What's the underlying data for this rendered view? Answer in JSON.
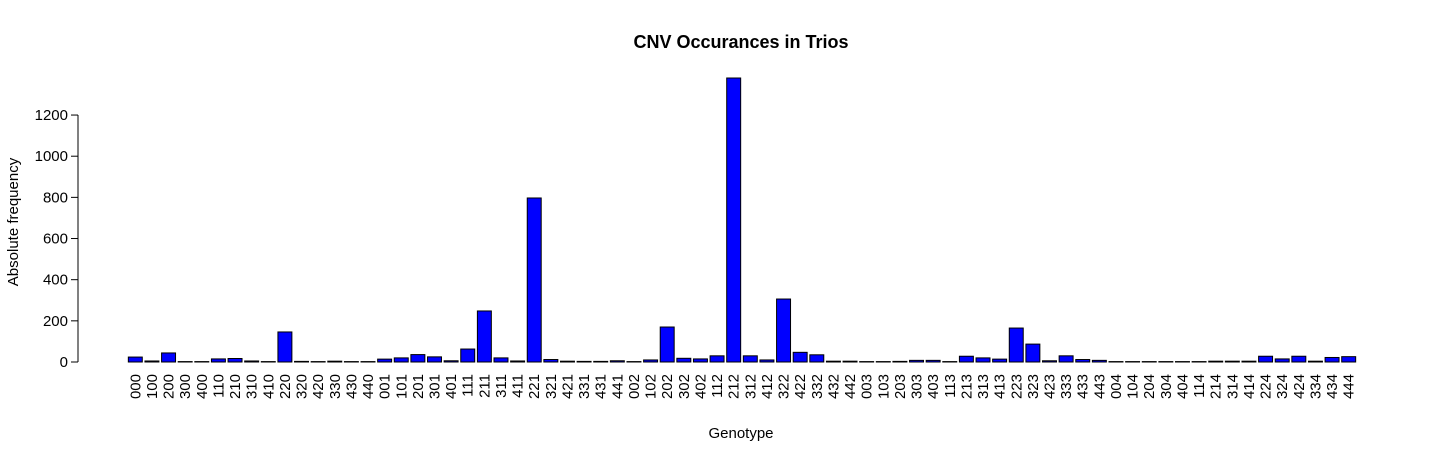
{
  "chart_data": {
    "type": "bar",
    "title": "CNV Occurances in Trios",
    "x_label": "Genotype",
    "y_label": "Absolute frequency",
    "categories": [
      "000",
      "100",
      "200",
      "300",
      "400",
      "110",
      "210",
      "310",
      "410",
      "220",
      "320",
      "420",
      "330",
      "430",
      "440",
      "001",
      "101",
      "201",
      "301",
      "401",
      "111",
      "211",
      "311",
      "411",
      "221",
      "321",
      "421",
      "331",
      "431",
      "441",
      "002",
      "102",
      "202",
      "302",
      "402",
      "112",
      "212",
      "312",
      "412",
      "322",
      "422",
      "332",
      "432",
      "442",
      "003",
      "103",
      "203",
      "303",
      "403",
      "113",
      "213",
      "313",
      "413",
      "223",
      "323",
      "423",
      "333",
      "433",
      "443",
      "004",
      "104",
      "204",
      "304",
      "404",
      "114",
      "214",
      "314",
      "414",
      "224",
      "324",
      "424",
      "334",
      "434",
      "444"
    ],
    "values": [
      24,
      5,
      44,
      2,
      2,
      15,
      17,
      5,
      2,
      146,
      3,
      2,
      4,
      2,
      2,
      14,
      20,
      36,
      25,
      6,
      63,
      248,
      20,
      5,
      797,
      12,
      4,
      3,
      3,
      6,
      2,
      10,
      170,
      18,
      15,
      30,
      1380,
      30,
      10,
      306,
      47,
      35,
      4,
      4,
      2,
      2,
      3,
      8,
      8,
      2,
      28,
      20,
      14,
      165,
      87,
      6,
      30,
      12,
      8,
      2,
      2,
      2,
      2,
      2,
      2,
      4,
      4,
      4,
      28,
      15,
      28,
      4,
      22,
      26
    ],
    "color": "#0000ff",
    "ylim": [
      0,
      1380
    ],
    "yticks": [
      0,
      200,
      400,
      600,
      800,
      1000,
      1200
    ]
  }
}
